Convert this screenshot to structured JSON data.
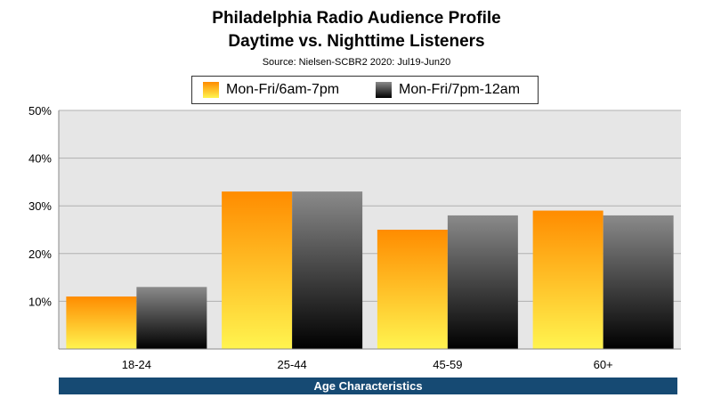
{
  "chart_data": {
    "type": "bar",
    "title": "Philadelphia Radio Audience Profile",
    "subtitle": "Daytime vs. Nighttime Listeners",
    "source": "Source: Nielsen-SCBR2 2020: Jul19-Jun20",
    "xlabel": "Age Characteristics",
    "ylabel": "",
    "categories": [
      "18-24",
      "25-44",
      "45-59",
      "60+"
    ],
    "series": [
      {
        "name": "Mon-Fri/6am-7pm",
        "values": [
          11,
          33,
          25,
          29
        ],
        "color_top": "#ff8c00",
        "color_bottom": "#fff44f"
      },
      {
        "name": "Mon-Fri/7pm-12am",
        "values": [
          13,
          33,
          28,
          28
        ],
        "color_top": "#8a8a8a",
        "color_bottom": "#000000"
      }
    ],
    "ylim": [
      0,
      50
    ],
    "yticks": [
      10,
      20,
      30,
      40,
      50
    ],
    "ytick_labels": [
      "10%",
      "20%",
      "30%",
      "40%",
      "50%"
    ],
    "grid": true,
    "legend_position": "top-center",
    "plot_background": "#e6e6e6"
  }
}
